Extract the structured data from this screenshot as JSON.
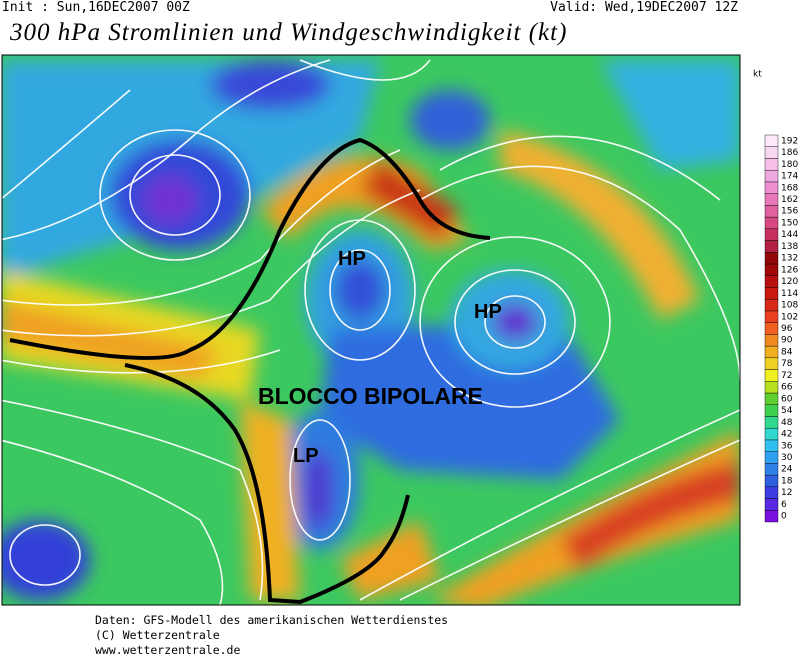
{
  "header": {
    "init": "Init : Sun,16DEC2007 00Z",
    "valid": "Valid: Wed,19DEC2007 12Z",
    "title": "300 hPa Stromlinien und Windgeschwindigkeit (kt)"
  },
  "colorbar": {
    "unit": "kt",
    "ticks": [
      0,
      6,
      12,
      18,
      24,
      30,
      36,
      42,
      48,
      54,
      60,
      66,
      72,
      78,
      84,
      90,
      96,
      102,
      108,
      114,
      120,
      126,
      132,
      138,
      144,
      150,
      156,
      162,
      168,
      174,
      180,
      186,
      192
    ]
  },
  "annotations": [
    "HP",
    "HP",
    "BLOCCO BIPOLARE",
    "LP"
  ],
  "footer": [
    "Daten: GFS-Modell des amerikanischen Wetterdienstes",
    "(C) Wetterzentrale",
    "www.wetterzentrale.de"
  ]
}
